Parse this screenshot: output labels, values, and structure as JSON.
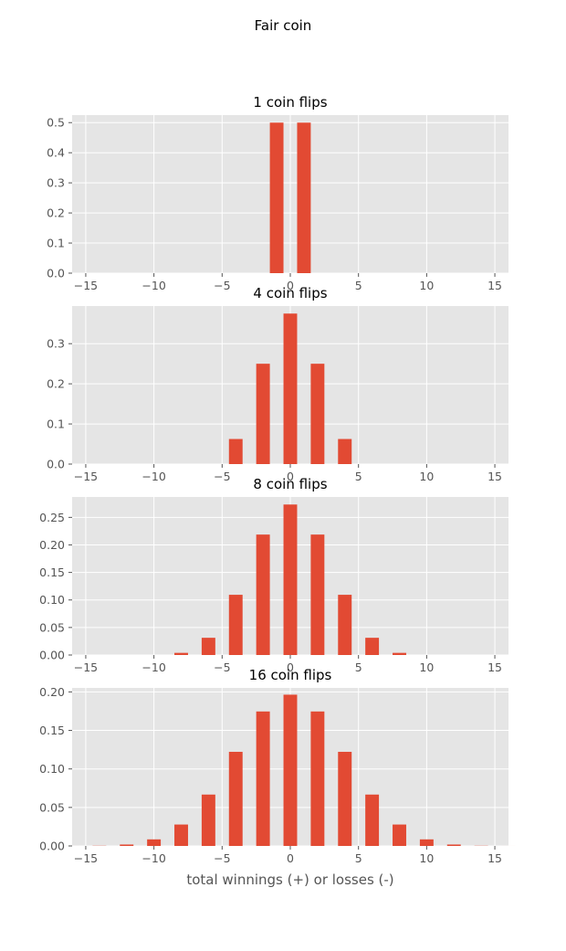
{
  "figure": {
    "title": "Fair coin",
    "xlabel": "total winnings (+) or losses (-)"
  },
  "colors": {
    "bar": "#E24A33",
    "plot_background": "#E5E5E5",
    "grid": "#FFFFFF"
  },
  "chart_data": [
    {
      "type": "bar",
      "title": "1 coin flips",
      "xlim": [
        -16,
        16
      ],
      "ylim": [
        0,
        0.525
      ],
      "xticks": [
        "−15",
        "−10",
        "−5",
        "0",
        "5",
        "10",
        "15"
      ],
      "xtick_values": [
        -15,
        -10,
        -5,
        0,
        5,
        10,
        15
      ],
      "yticks": [
        "0.0",
        "0.1",
        "0.2",
        "0.3",
        "0.4",
        "0.5"
      ],
      "ytick_values": [
        0,
        0.1,
        0.2,
        0.3,
        0.4,
        0.5
      ],
      "bar_width": 1,
      "x": [
        -1,
        1
      ],
      "values": [
        0.5,
        0.5
      ]
    },
    {
      "type": "bar",
      "title": "4 coin flips",
      "xlim": [
        -16,
        16
      ],
      "ylim": [
        0,
        0.39375
      ],
      "xticks": [
        "−15",
        "−10",
        "−5",
        "0",
        "5",
        "10",
        "15"
      ],
      "xtick_values": [
        -15,
        -10,
        -5,
        0,
        5,
        10,
        15
      ],
      "yticks": [
        "0.0",
        "0.1",
        "0.2",
        "0.3"
      ],
      "ytick_values": [
        0,
        0.1,
        0.2,
        0.3
      ],
      "bar_width": 1,
      "x": [
        -4,
        -2,
        0,
        2,
        4
      ],
      "values": [
        0.0625,
        0.25,
        0.375,
        0.25,
        0.0625
      ]
    },
    {
      "type": "bar",
      "title": "8 coin flips",
      "xlim": [
        -16,
        16
      ],
      "ylim": [
        0,
        0.2871
      ],
      "xticks": [
        "−15",
        "−10",
        "−5",
        "0",
        "5",
        "10",
        "15"
      ],
      "xtick_values": [
        -15,
        -10,
        -5,
        0,
        5,
        10,
        15
      ],
      "yticks": [
        "0.00",
        "0.05",
        "0.10",
        "0.15",
        "0.20",
        "0.25"
      ],
      "ytick_values": [
        0,
        0.05,
        0.1,
        0.15,
        0.2,
        0.25
      ],
      "bar_width": 1,
      "x": [
        -8,
        -6,
        -4,
        -2,
        0,
        2,
        4,
        6,
        8
      ],
      "values": [
        0.0039,
        0.0313,
        0.1094,
        0.2188,
        0.2734,
        0.2188,
        0.1094,
        0.0313,
        0.0039
      ]
    },
    {
      "type": "bar",
      "title": "16 coin flips",
      "xlim": [
        -16,
        16
      ],
      "ylim": [
        0,
        0.2052
      ],
      "xticks": [
        "−15",
        "−10",
        "−5",
        "0",
        "5",
        "10",
        "15"
      ],
      "xtick_values": [
        -15,
        -10,
        -5,
        0,
        5,
        10,
        15
      ],
      "yticks": [
        "0.00",
        "0.05",
        "0.10",
        "0.15",
        "0.20"
      ],
      "ytick_values": [
        0,
        0.05,
        0.1,
        0.15,
        0.2
      ],
      "bar_width": 1,
      "x": [
        -16,
        -14,
        -12,
        -10,
        -8,
        -6,
        -4,
        -2,
        0,
        2,
        4,
        6,
        8,
        10,
        12,
        14,
        16
      ],
      "values": [
        1.53e-05,
        0.000244,
        0.00183,
        0.00854,
        0.0278,
        0.0667,
        0.1222,
        0.1746,
        0.1964,
        0.1746,
        0.1222,
        0.0667,
        0.0278,
        0.00854,
        0.00183,
        0.000244,
        1.53e-05
      ]
    }
  ]
}
